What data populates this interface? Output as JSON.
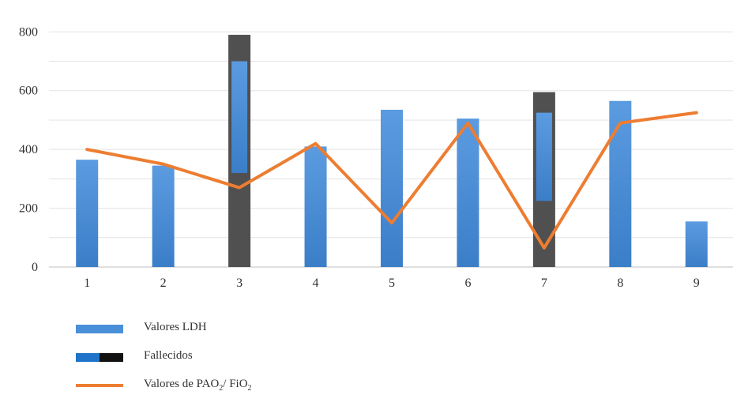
{
  "chart_data": {
    "type": "bar",
    "categories": [
      "1",
      "2",
      "3",
      "4",
      "5",
      "6",
      "7",
      "8",
      "9"
    ],
    "ylim": [
      0,
      860
    ],
    "yticks": [
      0,
      200,
      400,
      600,
      800
    ],
    "grid": true,
    "legend_position": "bottom-left",
    "series": [
      {
        "name": "Valores LDH",
        "kind": "bar",
        "color": "#4a90d9",
        "values": [
          365,
          345,
          790,
          410,
          535,
          505,
          595,
          565,
          155
        ]
      },
      {
        "name": "Fallecidos",
        "kind": "bar-highlight",
        "color": "#505050",
        "deceased_categories": [
          "3",
          "7"
        ]
      },
      {
        "name": "Valores de PAO2/ FiO2",
        "kind": "line",
        "color": "#ed7d31",
        "values": [
          400,
          350,
          270,
          420,
          150,
          490,
          65,
          490,
          525
        ]
      }
    ],
    "inner_highlight": [
      {
        "category": "3",
        "from": 320,
        "to": 700
      },
      {
        "category": "7",
        "from": 225,
        "to": 525
      }
    ]
  },
  "legend": {
    "ldh_label": "Valores LDH",
    "fallecidos_label": "Fallecidos",
    "pao_label_main": "Valores de PAO",
    "pao_sub1": "2",
    "pao_sep": "/ FiO",
    "pao_sub2": "2"
  }
}
